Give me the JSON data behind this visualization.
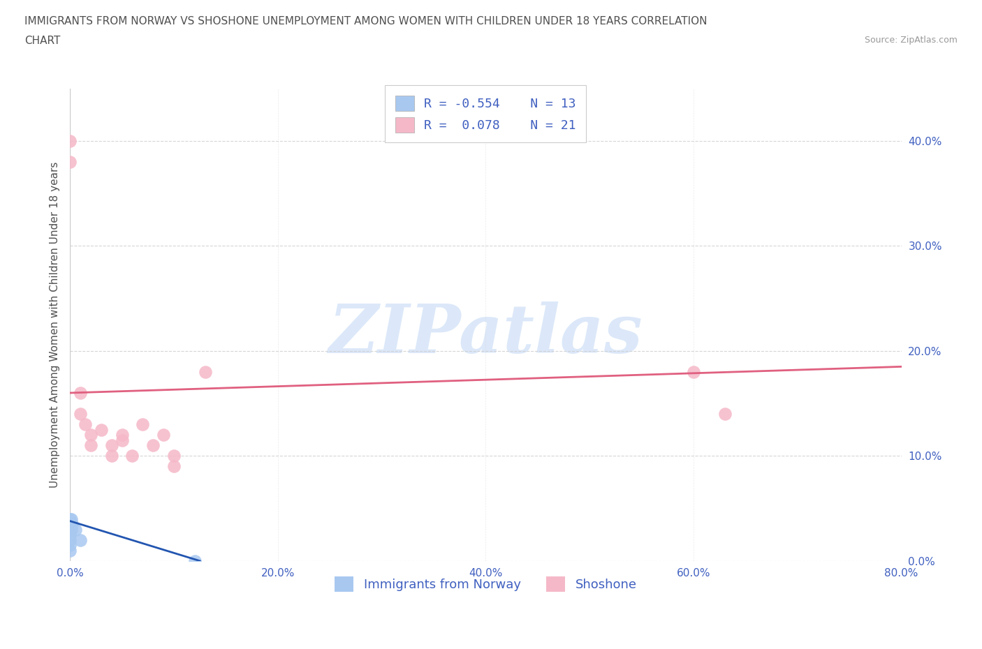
{
  "title_line1": "IMMIGRANTS FROM NORWAY VS SHOSHONE UNEMPLOYMENT AMONG WOMEN WITH CHILDREN UNDER 18 YEARS CORRELATION",
  "title_line2": "CHART",
  "source": "Source: ZipAtlas.com",
  "ylabel": "Unemployment Among Women with Children Under 18 years",
  "xlim": [
    0.0,
    0.8
  ],
  "ylim": [
    0.0,
    0.45
  ],
  "yticks": [
    0.0,
    0.1,
    0.2,
    0.3,
    0.4
  ],
  "ytick_labels": [
    "0.0%",
    "10.0%",
    "20.0%",
    "30.0%",
    "40.0%"
  ],
  "xticks": [
    0.0,
    0.2,
    0.4,
    0.6,
    0.8
  ],
  "xtick_labels": [
    "0.0%",
    "20.0%",
    "40.0%",
    "60.0%",
    "80.0%"
  ],
  "norway_color": "#a8c8f0",
  "shoshone_color": "#f5b8c8",
  "norway_R": -0.554,
  "norway_N": 13,
  "shoshone_R": 0.078,
  "shoshone_N": 21,
  "norway_line_color": "#2255b0",
  "shoshone_line_color": "#e06080",
  "norway_x": [
    0.0,
    0.0,
    0.0,
    0.0,
    0.0,
    0.0,
    0.0,
    0.001,
    0.001,
    0.002,
    0.005,
    0.01,
    0.12
  ],
  "norway_y": [
    0.04,
    0.035,
    0.03,
    0.025,
    0.02,
    0.015,
    0.01,
    0.04,
    0.03,
    0.035,
    0.03,
    0.02,
    0.0
  ],
  "shoshone_x": [
    0.0,
    0.0,
    0.01,
    0.01,
    0.015,
    0.02,
    0.02,
    0.03,
    0.04,
    0.04,
    0.05,
    0.05,
    0.06,
    0.07,
    0.08,
    0.09,
    0.1,
    0.1,
    0.13,
    0.6,
    0.63
  ],
  "shoshone_y": [
    0.4,
    0.38,
    0.16,
    0.14,
    0.13,
    0.12,
    0.11,
    0.125,
    0.11,
    0.1,
    0.12,
    0.115,
    0.1,
    0.13,
    0.11,
    0.12,
    0.09,
    0.1,
    0.18,
    0.18,
    0.14
  ],
  "shoshone_line_x0": 0.0,
  "shoshone_line_x1": 0.8,
  "shoshone_line_y0": 0.16,
  "shoshone_line_y1": 0.185,
  "norway_line_x0": 0.0,
  "norway_line_x1": 0.125,
  "norway_line_y0": 0.038,
  "norway_line_y1": 0.0,
  "background_color": "#ffffff",
  "grid_color": "#cccccc",
  "legend_label_norway": "Immigrants from Norway",
  "legend_label_shoshone": "Shoshone",
  "legend_text_color": "#4060c0",
  "title_color": "#505050",
  "axis_color": "#999999",
  "watermark_text": "ZIPatlas",
  "watermark_color": "#c5daf5"
}
